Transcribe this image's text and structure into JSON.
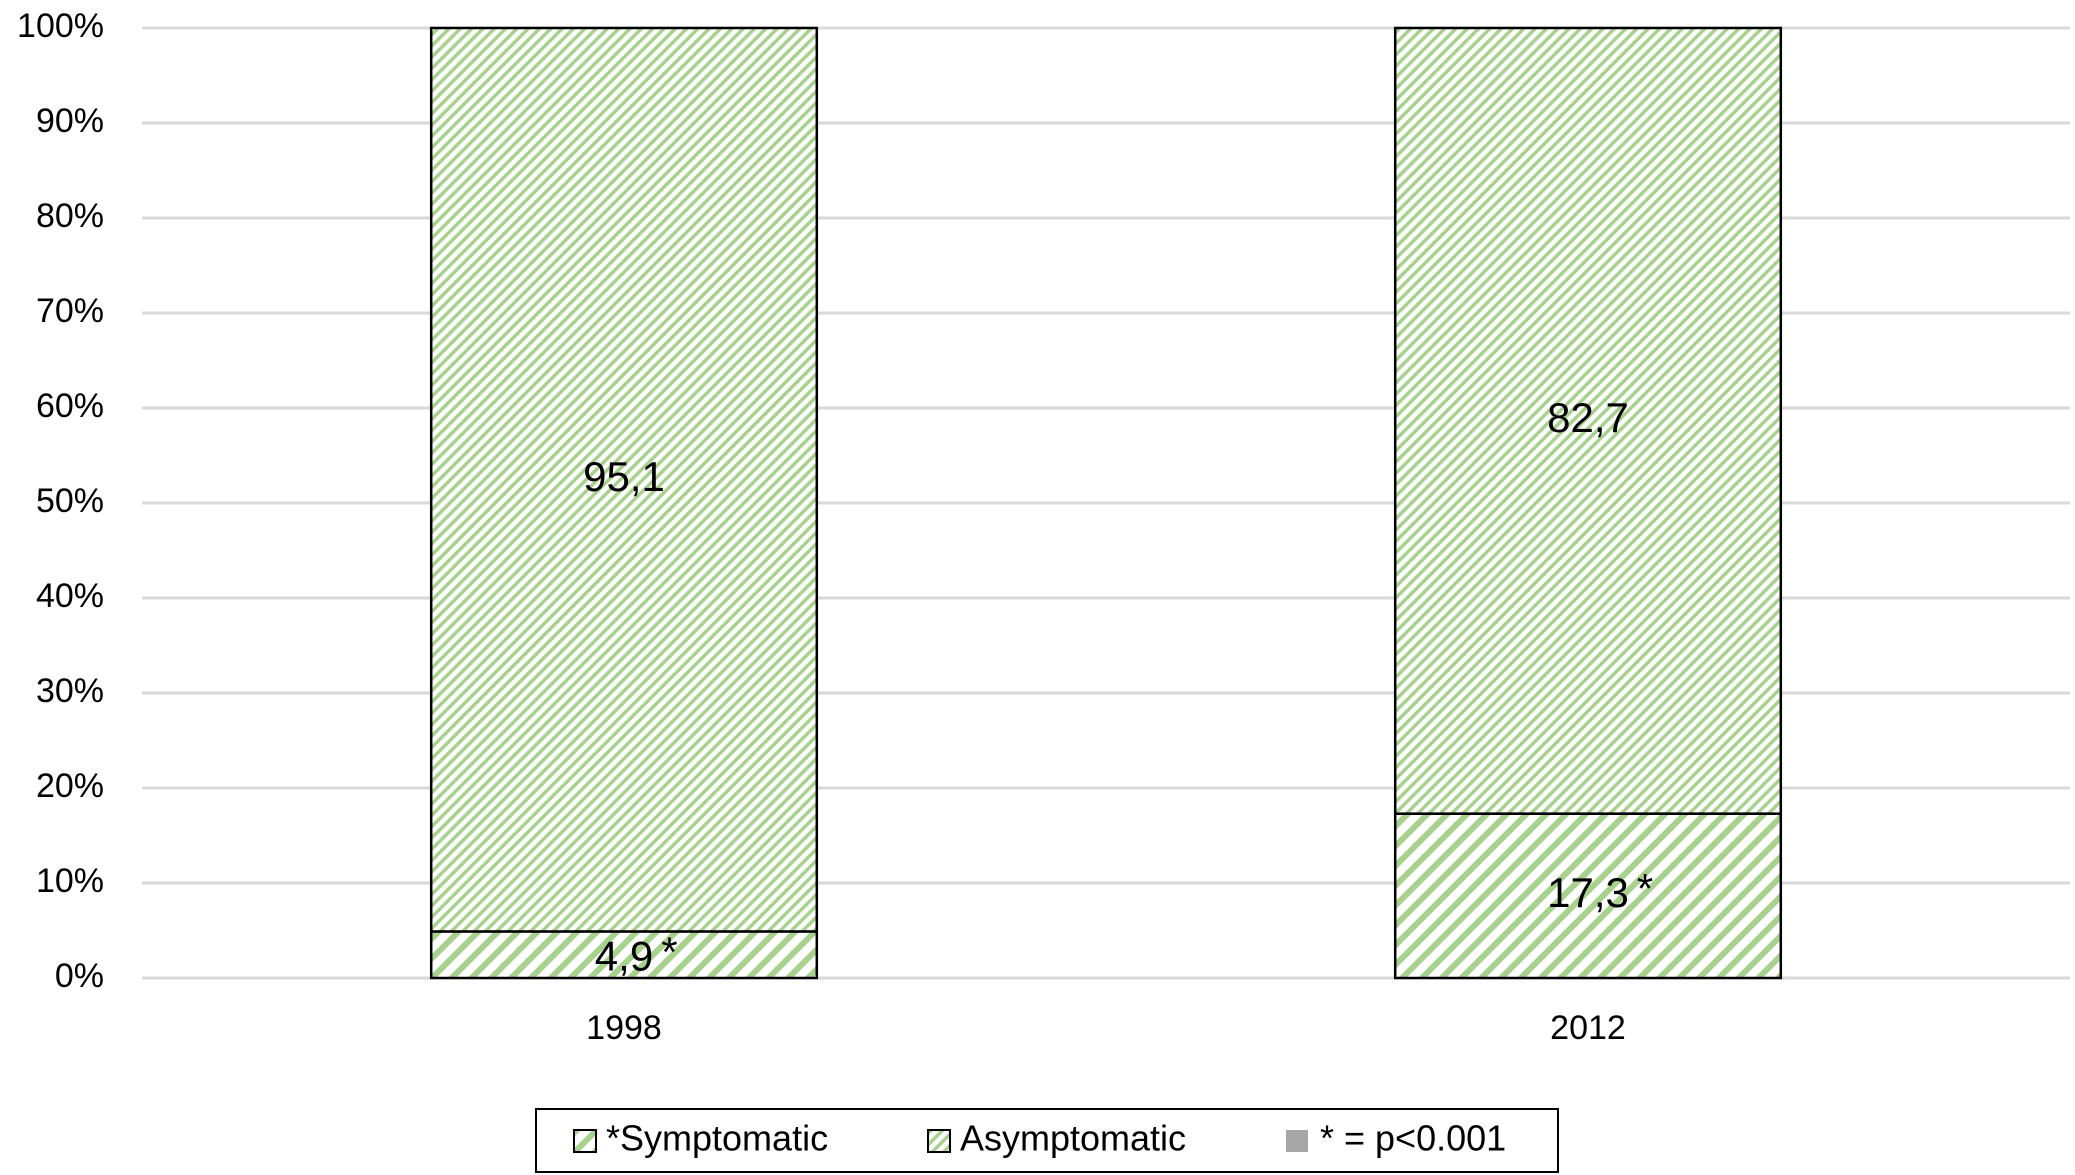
{
  "chart_data": {
    "type": "stacked-bar",
    "categories": [
      "1998",
      "2012"
    ],
    "series": [
      {
        "name": "*Symptomatic",
        "color": "#a9d18e",
        "values": [
          4.9,
          17.3
        ],
        "value_labels": [
          "4,9",
          "17,3"
        ],
        "value_annotations": [
          "*",
          "*"
        ]
      },
      {
        "name": "Asymptomatic",
        "color": "#a9d18e",
        "values": [
          95.1,
          82.7
        ],
        "value_labels": [
          "95,1",
          "82,7"
        ]
      }
    ],
    "ylim": [
      0,
      100
    ],
    "yticks": [
      {
        "value": 0,
        "label": "0%"
      },
      {
        "value": 10,
        "label": "10%"
      },
      {
        "value": 20,
        "label": "20%"
      },
      {
        "value": 30,
        "label": "30%"
      },
      {
        "value": 40,
        "label": "40%"
      },
      {
        "value": 50,
        "label": "50%"
      },
      {
        "value": 60,
        "label": "60%"
      },
      {
        "value": 70,
        "label": "70%"
      },
      {
        "value": 80,
        "label": "80%"
      },
      {
        "value": 90,
        "label": "90%"
      },
      {
        "value": 100,
        "label": "100%"
      }
    ],
    "grid": true,
    "legend_position": "bottom",
    "legend_note": {
      "color": "#a6a6a6",
      "label": "* = p<0.001"
    }
  }
}
